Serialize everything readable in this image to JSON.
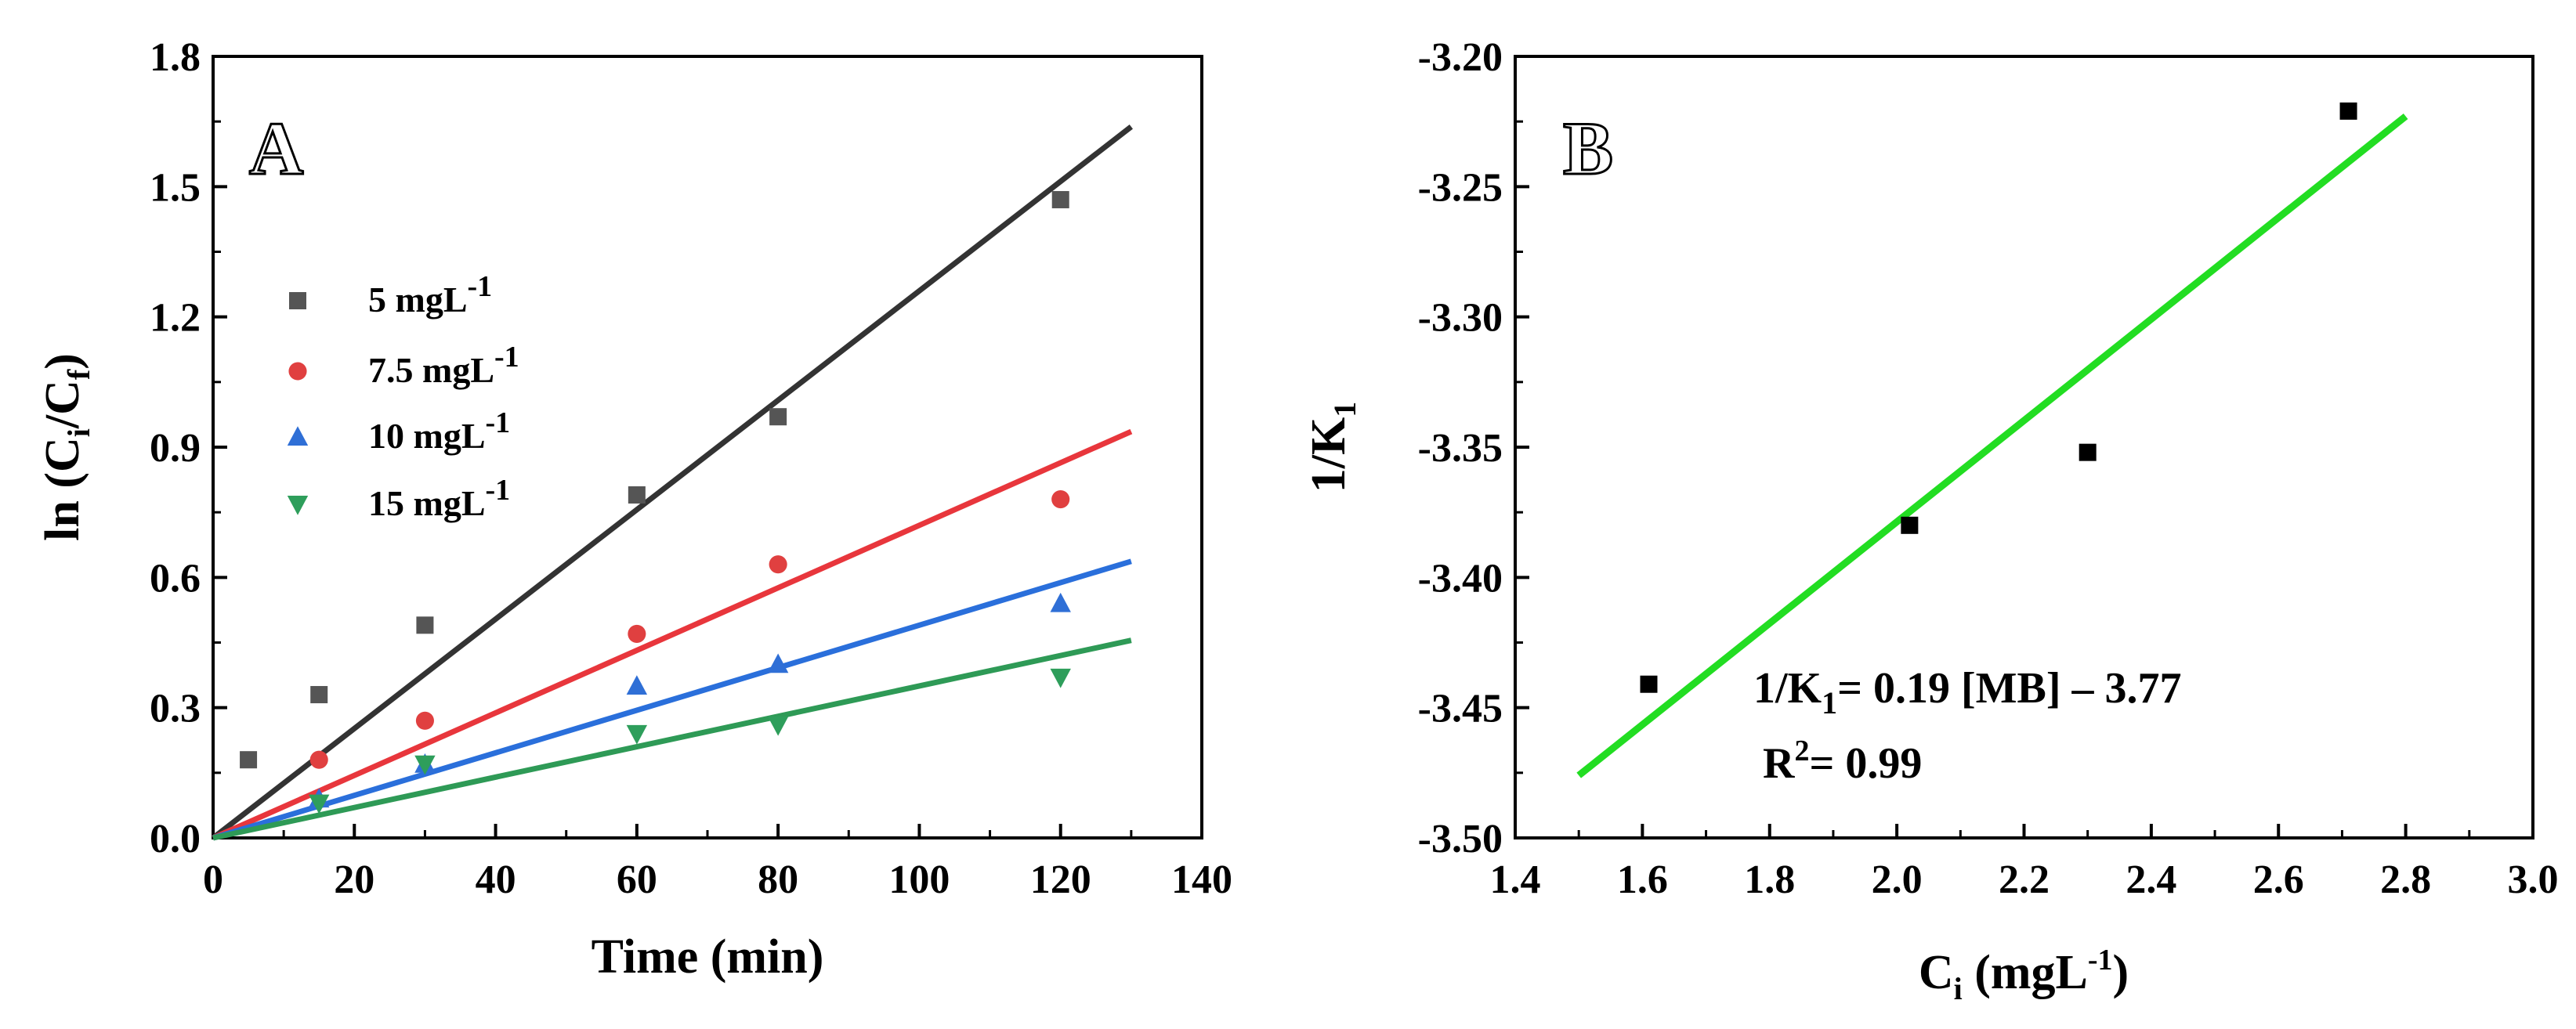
{
  "chart_data": [
    {
      "type": "scatter",
      "panel_label": "A",
      "xlabel": "Time (min)",
      "ylabel": "ln (Ci/Cf)",
      "xlim": [
        0,
        140
      ],
      "ylim": [
        0,
        1.8
      ],
      "x_ticks": [
        "0",
        "20",
        "40",
        "60",
        "80",
        "100",
        "120",
        "140"
      ],
      "y_ticks": [
        "0.0",
        "0.3",
        "0.6",
        "0.9",
        "1.2",
        "1.5",
        "1.8"
      ],
      "series": [
        {
          "name": "5 mgL-1",
          "marker": "square",
          "color": "#555555",
          "line_color": "#333333",
          "x": [
            5,
            15,
            30,
            60,
            80,
            120
          ],
          "y": [
            0.18,
            0.33,
            0.49,
            0.79,
            0.97,
            1.47
          ],
          "fit": {
            "slope": 0.0126,
            "intercept": 0.0
          }
        },
        {
          "name": "7.5 mgL-1",
          "marker": "circle",
          "color": "#e04040",
          "line_color": "#e8363c",
          "x": [
            15,
            30,
            60,
            80,
            120
          ],
          "y": [
            0.18,
            0.27,
            0.47,
            0.63,
            0.78
          ],
          "fit": {
            "slope": 0.0072,
            "intercept": 0.0
          }
        },
        {
          "name": "10 mgL-1",
          "marker": "triangle-up",
          "color": "#2f6fd6",
          "line_color": "#2a6fdb",
          "x": [
            15,
            30,
            60,
            80,
            120
          ],
          "y": [
            0.09,
            0.17,
            0.35,
            0.4,
            0.54
          ],
          "fit": {
            "slope": 0.0049,
            "intercept": 0.0
          }
        },
        {
          "name": "15 mgL-1",
          "marker": "triangle-down",
          "color": "#2e9e5b",
          "line_color": "#2e9a56",
          "x": [
            15,
            30,
            60,
            80,
            120
          ],
          "y": [
            0.08,
            0.17,
            0.24,
            0.26,
            0.37
          ],
          "fit": {
            "slope": 0.0035,
            "intercept": 0.0
          }
        }
      ],
      "legend": {
        "position": "top-left",
        "entries": [
          {
            "base": "5 mgL",
            "sup": "-1"
          },
          {
            "base": "7.5 mgL",
            "sup": "-1"
          },
          {
            "base": "10 mgL",
            "sup": "-1"
          },
          {
            "base": "15 mgL",
            "sup": "-1"
          }
        ]
      }
    },
    {
      "type": "scatter",
      "panel_label": "B",
      "xlabel": "Ci (mgL-1)",
      "ylabel": "1/K1",
      "xlim": [
        1.4,
        3.0
      ],
      "ylim": [
        -3.5,
        -3.2
      ],
      "x_ticks": [
        "1.4",
        "1.6",
        "1.8",
        "2.0",
        "2.2",
        "2.4",
        "2.6",
        "2.8",
        "3.0"
      ],
      "y_ticks": [
        "-3.50",
        "-3.45",
        "-3.40",
        "-3.35",
        "-3.30",
        "-3.25",
        "-3.20"
      ],
      "series": [
        {
          "name": "data",
          "marker": "square",
          "color": "#000000",
          "x": [
            1.61,
            2.02,
            2.3,
            2.71
          ],
          "y": [
            -3.441,
            -3.38,
            -3.352,
            -3.221
          ]
        },
        {
          "name": "fit",
          "type": "line",
          "color": "#22dd22",
          "x": [
            1.5,
            2.8
          ],
          "y": [
            -3.476,
            -3.223
          ]
        }
      ],
      "equation": "1/K1= 0.19 [MB] – 3.77",
      "r2": "R2= 0.99"
    }
  ]
}
